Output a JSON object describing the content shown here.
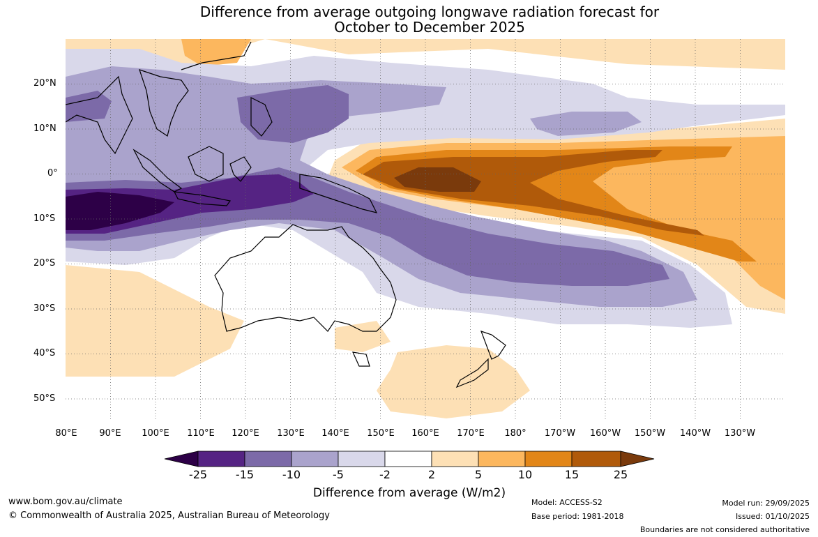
{
  "title": {
    "line1": "Difference from average outgoing longwave radiation forecast for",
    "line2": "October to December 2025"
  },
  "map": {
    "lat_labels": [
      "20°N",
      "10°N",
      "0°",
      "10°S",
      "20°S",
      "30°S",
      "40°S",
      "50°S"
    ],
    "lon_labels": [
      "80°E",
      "90°E",
      "100°E",
      "110°E",
      "120°E",
      "130°E",
      "140°E",
      "150°E",
      "160°E",
      "170°E",
      "180°",
      "170°W",
      "160°W",
      "150°W",
      "140°W",
      "130°W"
    ]
  },
  "colorbar": {
    "tick_labels": [
      "-25",
      "-15",
      "-10",
      "-5",
      "-2",
      "2",
      "5",
      "10",
      "15",
      "25"
    ],
    "colors": [
      "#2d0047",
      "#552383",
      "#7c6aa8",
      "#aaa3cc",
      "#d9d8ea",
      "#ffffff",
      "#fde0b5",
      "#fcb75e",
      "#e28618",
      "#b05a0a",
      "#7a3a0c"
    ],
    "label": "Difference from average (W/m2)"
  },
  "footer": {
    "website": "www.bom.gov.au/climate",
    "copyright": "© Commonwealth of Australia 2025, Australian Bureau of Meteorology",
    "model": "Model: ACCESS-S2",
    "base_period": "Base period: 1981-2018",
    "model_run": "Model run: 29/09/2025",
    "issued": "Issued: 01/10/2025",
    "disclaimer": "Boundaries are not considered authoritative"
  }
}
